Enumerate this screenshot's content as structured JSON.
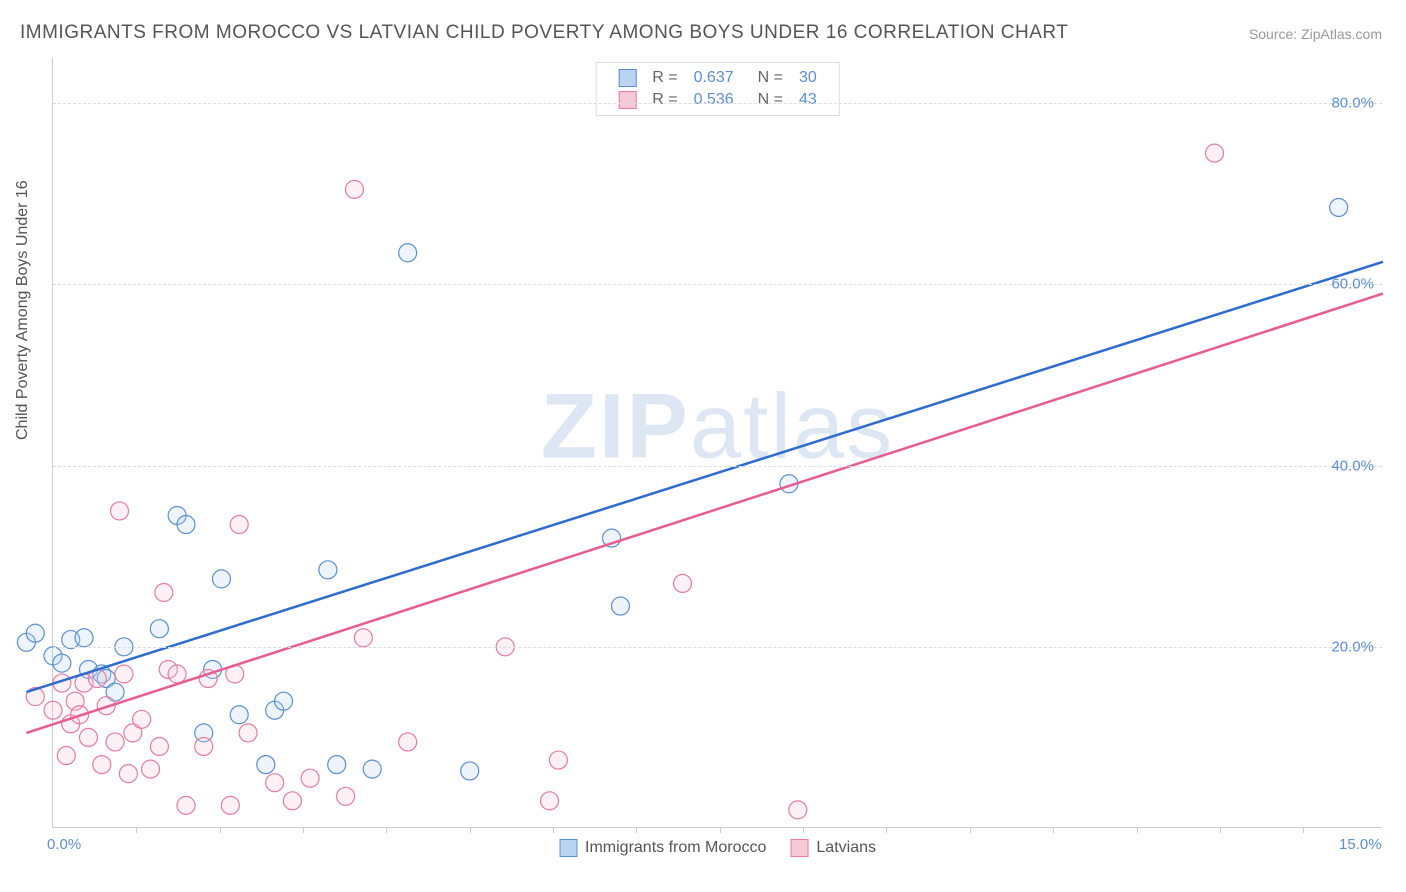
{
  "title": "IMMIGRANTS FROM MOROCCO VS LATVIAN CHILD POVERTY AMONG BOYS UNDER 16 CORRELATION CHART",
  "source_label": "Source:",
  "source_name": "ZipAtlas.com",
  "ylabel": "Child Poverty Among Boys Under 16",
  "watermark_bold": "ZIP",
  "watermark_rest": "atlas",
  "chart": {
    "type": "scatter",
    "background_color": "#ffffff",
    "grid_color": "#dddddd",
    "axis_color": "#cccccc",
    "tick_label_color": "#5b8fd6",
    "text_color": "#555555",
    "title_fontsize": 19,
    "tick_fontsize": 15,
    "label_fontsize": 16,
    "xlim": [
      0,
      15
    ],
    "ylim": [
      0,
      85
    ],
    "yticks": [
      20,
      40,
      60,
      80
    ],
    "ytick_labels": [
      "20.0%",
      "40.0%",
      "60.0%",
      "80.0%"
    ],
    "xticks_minor": [
      0.94,
      1.88,
      2.82,
      3.76,
      4.7,
      5.64,
      6.58,
      7.52,
      8.46,
      9.4,
      10.34,
      11.28,
      12.22,
      13.16,
      14.1
    ],
    "xtick_labels": {
      "0": "0.0%",
      "15": "15.0%"
    },
    "marker_radius": 9,
    "marker_stroke_width": 1.2,
    "marker_fill_opacity": 0.25,
    "trend_line_width": 2.5,
    "legend_top": {
      "rows": [
        {
          "swatch_fill": "#b9d3f0",
          "swatch_stroke": "#5b8fd6",
          "r_label": "R =",
          "r_value": "0.637",
          "n_label": "N =",
          "n_value": "30"
        },
        {
          "swatch_fill": "#f6c9d6",
          "swatch_stroke": "#e87ba2",
          "r_label": "R =",
          "r_value": "0.536",
          "n_label": "N =",
          "n_value": "43"
        }
      ]
    },
    "legend_bottom": [
      {
        "swatch_fill": "#b9d3f0",
        "swatch_stroke": "#5b8fd6",
        "label": "Immigrants from Morocco"
      },
      {
        "swatch_fill": "#f6c9d6",
        "swatch_stroke": "#e87ba2",
        "label": "Latvians"
      }
    ],
    "series": [
      {
        "name": "Immigrants from Morocco",
        "color_fill": "#b9d3f0",
        "color_stroke": "#5b8fd6",
        "trend_color": "#2e6bd0",
        "trend": {
          "x0": -0.3,
          "y0": 15.0,
          "x1": 15.0,
          "y1": 62.5
        },
        "points": [
          [
            -0.3,
            20.5
          ],
          [
            -0.2,
            21.5
          ],
          [
            0.0,
            19.0
          ],
          [
            0.1,
            18.2
          ],
          [
            0.2,
            20.8
          ],
          [
            0.35,
            21.0
          ],
          [
            0.4,
            17.5
          ],
          [
            0.55,
            17.0
          ],
          [
            0.6,
            16.5
          ],
          [
            0.7,
            15.0
          ],
          [
            0.8,
            20.0
          ],
          [
            1.2,
            22.0
          ],
          [
            1.4,
            34.5
          ],
          [
            1.5,
            33.5
          ],
          [
            1.7,
            10.5
          ],
          [
            1.8,
            17.5
          ],
          [
            1.9,
            27.5
          ],
          [
            2.1,
            12.5
          ],
          [
            2.4,
            7.0
          ],
          [
            2.5,
            13.0
          ],
          [
            2.6,
            14.0
          ],
          [
            3.1,
            28.5
          ],
          [
            3.2,
            7.0
          ],
          [
            3.6,
            6.5
          ],
          [
            4.0,
            63.5
          ],
          [
            4.7,
            6.3
          ],
          [
            6.3,
            32.0
          ],
          [
            6.4,
            24.5
          ],
          [
            8.3,
            38.0
          ],
          [
            14.5,
            68.5
          ]
        ]
      },
      {
        "name": "Latvians",
        "color_fill": "#f6c9d6",
        "color_stroke": "#e87ba2",
        "trend_color": "#e85c8f",
        "trend": {
          "x0": -0.3,
          "y0": 10.5,
          "x1": 15.0,
          "y1": 59.0
        },
        "points": [
          [
            -0.2,
            14.5
          ],
          [
            0.0,
            13.0
          ],
          [
            0.1,
            16.0
          ],
          [
            0.15,
            8.0
          ],
          [
            0.2,
            11.5
          ],
          [
            0.25,
            14.0
          ],
          [
            0.3,
            12.5
          ],
          [
            0.35,
            16.0
          ],
          [
            0.4,
            10.0
          ],
          [
            0.5,
            16.5
          ],
          [
            0.55,
            7.0
          ],
          [
            0.6,
            13.5
          ],
          [
            0.7,
            9.5
          ],
          [
            0.75,
            35.0
          ],
          [
            0.8,
            17.0
          ],
          [
            0.85,
            6.0
          ],
          [
            0.9,
            10.5
          ],
          [
            1.0,
            12.0
          ],
          [
            1.1,
            6.5
          ],
          [
            1.2,
            9.0
          ],
          [
            1.25,
            26.0
          ],
          [
            1.3,
            17.5
          ],
          [
            1.4,
            17.0
          ],
          [
            1.5,
            2.5
          ],
          [
            1.7,
            9.0
          ],
          [
            1.75,
            16.5
          ],
          [
            2.0,
            2.5
          ],
          [
            2.05,
            17.0
          ],
          [
            2.1,
            33.5
          ],
          [
            2.2,
            10.5
          ],
          [
            2.5,
            5.0
          ],
          [
            2.7,
            3.0
          ],
          [
            2.9,
            5.5
          ],
          [
            3.3,
            3.5
          ],
          [
            3.4,
            70.5
          ],
          [
            3.5,
            21.0
          ],
          [
            4.0,
            9.5
          ],
          [
            5.1,
            20.0
          ],
          [
            5.6,
            3.0
          ],
          [
            5.7,
            7.5
          ],
          [
            7.1,
            27.0
          ],
          [
            8.4,
            2.0
          ],
          [
            13.1,
            74.5
          ]
        ]
      }
    ]
  }
}
